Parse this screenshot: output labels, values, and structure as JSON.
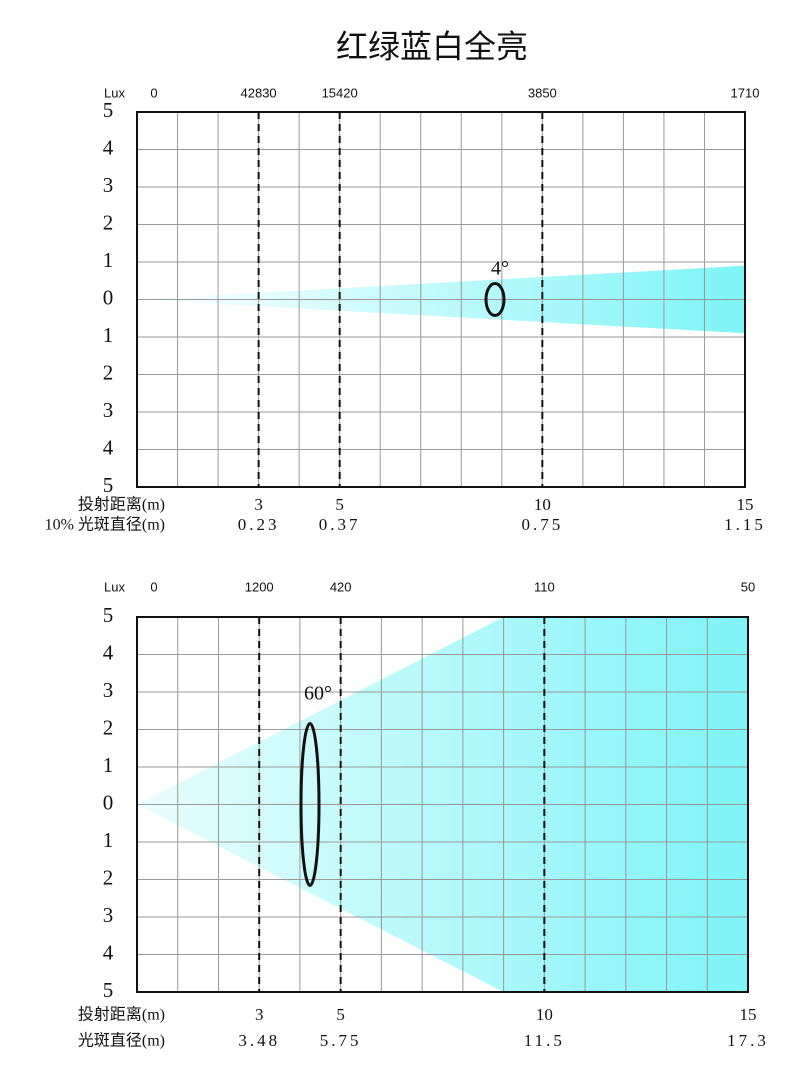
{
  "title": "红绿蓝白全亮",
  "chart_data": [
    {
      "type": "beam",
      "xlim": [
        0,
        15
      ],
      "ylim": [
        -5,
        5
      ],
      "grid": true,
      "color": "#7ef4f7",
      "yticks": [
        {
          "value": -5,
          "label": "5"
        },
        {
          "value": -4,
          "label": "4"
        },
        {
          "value": -3,
          "label": "3"
        },
        {
          "value": -2,
          "label": "2"
        },
        {
          "value": -1,
          "label": "1"
        },
        0,
        1,
        2,
        3,
        4,
        5
      ],
      "xticks": [
        3,
        5,
        10,
        15
      ],
      "dashed": [
        3,
        5,
        10
      ],
      "lux_label": "Lux",
      "lux_x": [
        0,
        3,
        5,
        10,
        15
      ],
      "lux": [
        0,
        42830,
        15420,
        3850,
        1710
      ],
      "distance_label": "投射距离(m)",
      "diameter_label": "10% 光斑直径(m)",
      "diameters": [
        0.23,
        0.37,
        0.75,
        1.15
      ],
      "beam": {
        "x": [
          0,
          15
        ],
        "upper": [
          0,
          0.9
        ],
        "lower": [
          0,
          -0.9
        ]
      },
      "annotation": "4°"
    },
    {
      "type": "beam",
      "xlim": [
        0,
        15
      ],
      "ylim": [
        -5,
        5
      ],
      "grid": true,
      "color": "#7ef4f7",
      "yticks": [
        {
          "value": -5,
          "label": "5"
        },
        {
          "value": -4,
          "label": "4"
        },
        {
          "value": -3,
          "label": "3"
        },
        {
          "value": -2,
          "label": "2"
        },
        {
          "value": -1,
          "label": "1"
        },
        0,
        1,
        2,
        3,
        4,
        5
      ],
      "xticks": [
        3,
        5,
        10,
        15
      ],
      "dashed": [
        3,
        5,
        10
      ],
      "lux_label": "Lux",
      "lux_x": [
        0,
        3,
        5,
        10,
        15
      ],
      "lux": [
        0,
        1200,
        420,
        110,
        50
      ],
      "distance_label": "投射距离(m)",
      "diameter_label": "光斑直径(m)",
      "diameters": [
        3.48,
        5.75,
        11.5,
        17.3
      ],
      "beam": {
        "x": [
          0,
          9,
          15
        ],
        "upper": [
          0,
          5,
          5
        ],
        "lower": [
          0,
          -5,
          -5
        ]
      },
      "annotation": "60°"
    }
  ]
}
